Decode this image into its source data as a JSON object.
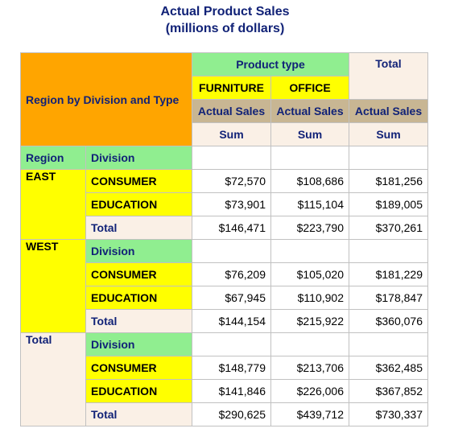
{
  "title": "Actual Product Sales",
  "subtitle": "(millions of dollars)",
  "header": {
    "row_col_label": "Region by Division and Type",
    "product_type_label": "Product type",
    "total_label": "Total",
    "product_types": [
      "FURNITURE",
      "OFFICE"
    ],
    "analysis_var": "Actual Sales",
    "stat": "Sum"
  },
  "labels": {
    "region": "Region",
    "division": "Division",
    "total": "Total"
  },
  "regions": [
    {
      "name": "EAST",
      "rows": [
        {
          "label": "CONSUMER",
          "values": [
            "$72,570",
            "$108,686",
            "$181,256"
          ]
        },
        {
          "label": "EDUCATION",
          "values": [
            "$73,901",
            "$115,104",
            "$189,005"
          ]
        },
        {
          "label": "Total",
          "values": [
            "$146,471",
            "$223,790",
            "$370,261"
          ]
        }
      ]
    },
    {
      "name": "WEST",
      "rows": [
        {
          "label": "CONSUMER",
          "values": [
            "$76,209",
            "$105,020",
            "$181,229"
          ]
        },
        {
          "label": "EDUCATION",
          "values": [
            "$67,945",
            "$110,902",
            "$178,847"
          ]
        },
        {
          "label": "Total",
          "values": [
            "$144,154",
            "$215,922",
            "$360,076"
          ]
        }
      ]
    },
    {
      "name": "Total",
      "rows": [
        {
          "label": "CONSUMER",
          "values": [
            "$148,779",
            "$213,706",
            "$362,485"
          ]
        },
        {
          "label": "EDUCATION",
          "values": [
            "$141,846",
            "$226,006",
            "$367,852"
          ]
        },
        {
          "label": "Total",
          "values": [
            "$290,625",
            "$439,712",
            "$730,337"
          ]
        }
      ]
    }
  ],
  "colors": {
    "title": "#112277",
    "header_orange": "#ffa500",
    "header_green": "#90ee90",
    "class_yellow": "#ffff00",
    "analysis_tan": "#c8b693",
    "total_linen": "#faf0e6"
  }
}
